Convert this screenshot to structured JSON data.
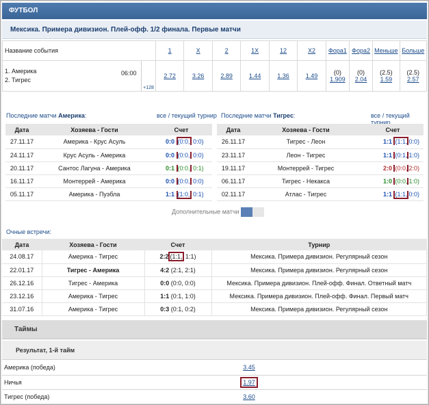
{
  "sport": "ФУТБОЛ",
  "league": "Мексика. Примера дивизион. Плей-офф. 1/2 финала. Первые матчи",
  "odds_header": {
    "event_name": "Название события",
    "cols": [
      "1",
      "X",
      "2",
      "1X",
      "12",
      "X2",
      "Фора1",
      "Фора2",
      "Меньше",
      "Больше"
    ]
  },
  "event": {
    "team1": "1. Америка",
    "team2": "2. Тигрес",
    "time": "06:00",
    "more": "+128",
    "odds": [
      "2.72",
      "3.26",
      "2.89",
      "1.44",
      "1.36",
      "1.49"
    ],
    "fora1_h": "(0)",
    "fora1_v": "1.909",
    "fora2_h": "(0)",
    "fora2_v": "2.04",
    "under_h": "(2.5)",
    "under_v": "1.59",
    "over_h": "(2.5)",
    "over_v": "2.57"
  },
  "left": {
    "title_pre": "Последние матчи ",
    "team": "Америка",
    "title_post": ":",
    "link_all": "все",
    "link_sep": " / ",
    "link_cur": "текущий турнир",
    "head": {
      "date": "Дата",
      "teams": "Хозяева - Гости",
      "score": "Счет"
    },
    "rows": [
      {
        "date": "27.11.17",
        "teams": "Америка - Крус Асуль",
        "s": "0:0",
        "h1": "(0:0,",
        "h2": "0:0)"
      },
      {
        "date": "24.11.17",
        "teams": "Крус Асуль - Америка",
        "s": "0:0",
        "h1": "(0:0,",
        "h2": "0:0)"
      },
      {
        "date": "20.11.17",
        "teams": "Сантос Лагуна - Америка",
        "s": "0:1",
        "h1": "(0:0,",
        "h2": "0:1)"
      },
      {
        "date": "16.11.17",
        "teams": "Монтеррей - Америка",
        "s": "0:0",
        "h1": "(0:0,",
        "h2": "0:0)"
      },
      {
        "date": "05.11.17",
        "teams": "Америка - Пуэбла",
        "s": "1:1",
        "h1": "(1:0,",
        "h2": "0:1)"
      }
    ]
  },
  "right": {
    "title_pre": "Последние матчи ",
    "team": "Тигрес",
    "title_post": ":",
    "link_all": "все",
    "link_sep": " / ",
    "link_cur": "текущий турнир",
    "head": {
      "date": "Дата",
      "teams": "Хозяева - Гости",
      "score": "Счет"
    },
    "rows": [
      {
        "date": "26.11.17",
        "teams": "Тигрес - Леон",
        "s": "1:1",
        "h1": "(1:1,",
        "h2": "0:0)"
      },
      {
        "date": "23.11.17",
        "teams": "Леон - Тигрес",
        "s": "1:1",
        "h1": "(0:1,",
        "h2": "1:0)"
      },
      {
        "date": "19.11.17",
        "teams": "Монтеррей - Тигрес",
        "s": "2:0",
        "h1": "(0:0,",
        "h2": "2:0)"
      },
      {
        "date": "06.11.17",
        "teams": "Тигрес - Некакса",
        "s": "1:0",
        "h1": "(0:0,",
        "h2": "1:0)"
      },
      {
        "date": "02.11.17",
        "teams": "Атлас - Тигрес",
        "s": "1:1",
        "h1": "(1:1,",
        "h2": "0:0)"
      }
    ]
  },
  "more_matches": "Дополнительные матчи",
  "h2h": {
    "title": "Очные встречи:",
    "head": {
      "date": "Дата",
      "teams": "Хозяева - Гости",
      "score": "Счет",
      "tour": "Турнир"
    },
    "rows": [
      {
        "date": "24.08.17",
        "teams": "Америка - Тигрес",
        "s": "2:2",
        "h1": "(1:1,",
        "h2": "1:1)",
        "tour": "Мексика. Примера дивизион. Регулярный сезон"
      },
      {
        "date": "22.01.17",
        "teams": "Тигрес - Америка",
        "s": "4:2",
        "h1": "(2:1,",
        "h2": "2:1)",
        "tour": "Мексика. Примера дивизион. Регулярный сезон"
      },
      {
        "date": "26.12.16",
        "teams": "Тигрес - Америка",
        "s": "0:0",
        "h1": "(0:0,",
        "h2": "0:0)",
        "tour": "Мексика. Примера дивизион. Плей-офф. Финал. Ответный матч"
      },
      {
        "date": "23.12.16",
        "teams": "Америка - Тигрес",
        "s": "1:1",
        "h1": "(0:1,",
        "h2": "1:0)",
        "tour": "Мексика. Примера дивизион. Плей-офф. Финал. Первый матч"
      },
      {
        "date": "31.07.16",
        "teams": "Америка - Тигрес",
        "s": "0:3",
        "h1": "(0:1,",
        "h2": "0:2)",
        "tour": "Мексика. Примера дивизион. Регулярный сезон"
      }
    ]
  },
  "halves": "Таймы",
  "result1": "Результат, 1-й тайм",
  "results": [
    {
      "label": "Америка (победа)",
      "value": "3.45"
    },
    {
      "label": "Ничья",
      "value": "1.97"
    },
    {
      "label": "Тигрес (победа)",
      "value": "3.60"
    }
  ],
  "colors": {
    "header": "#3b6596",
    "link": "#1a4a8a",
    "highlight_box": "#8a1c2b"
  }
}
